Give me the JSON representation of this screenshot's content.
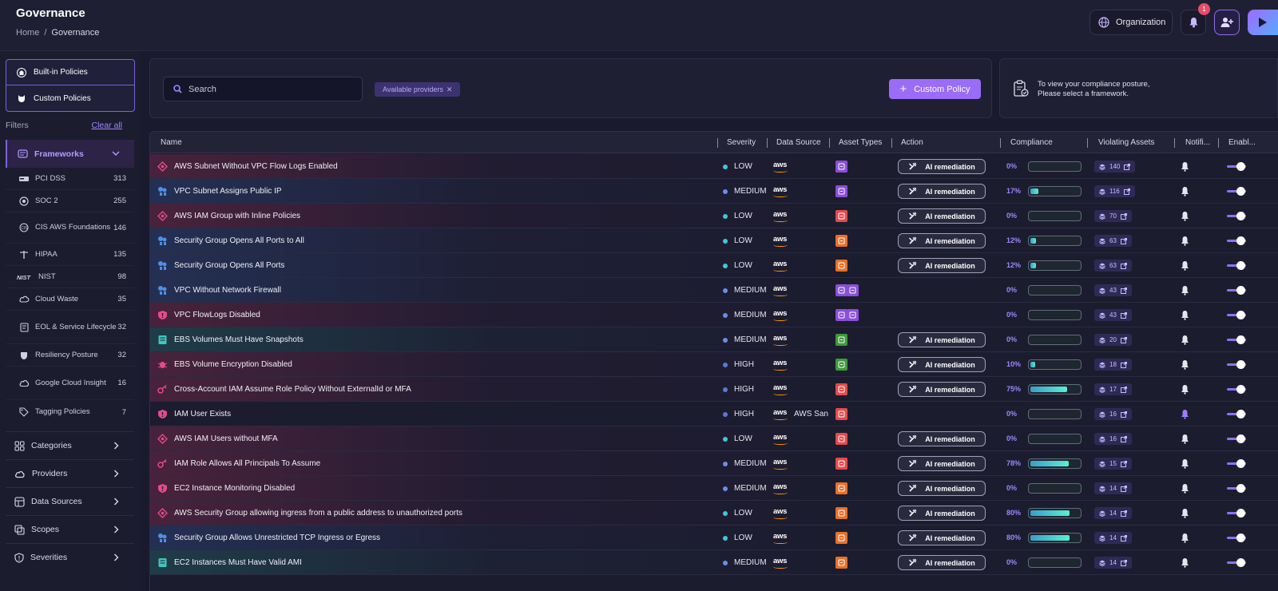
{
  "header": {
    "title": "Governance",
    "breadcrumb": {
      "home": "Home",
      "separator": "/",
      "current": "Governance"
    },
    "org_label": "Organization",
    "notification_count": "1"
  },
  "sidebar": {
    "policy_tabs": [
      {
        "label": "Built-in Policies",
        "icon": "building-icon"
      },
      {
        "label": "Custom Policies",
        "icon": "shield-cat-icon"
      }
    ],
    "filters_label": "Filters",
    "clear_all": "Clear all",
    "frameworks_label": "Frameworks",
    "frameworks": [
      {
        "name": "PCI DSS",
        "count": "313",
        "icon": "pci-logo-icon"
      },
      {
        "name": "SOC 2",
        "count": "255",
        "icon": "soc-logo-icon"
      },
      {
        "name": "CIS AWS Foundations",
        "count": "146",
        "icon": "cis-logo-icon"
      },
      {
        "name": "HIPAA",
        "count": "135",
        "icon": "hipaa-logo-icon"
      },
      {
        "name": "NIST",
        "count": "98",
        "icon": "nist-logo-icon"
      },
      {
        "name": "Cloud Waste",
        "count": "35",
        "icon": "cloud-waste-icon"
      },
      {
        "name": "EOL & Service Lifecycle",
        "count": "32",
        "icon": "eol-icon"
      },
      {
        "name": "Resiliency Posture",
        "count": "32",
        "icon": "resiliency-icon"
      },
      {
        "name": "Google Cloud Insight",
        "count": "16",
        "icon": "google-cloud-icon"
      },
      {
        "name": "Tagging Policies",
        "count": "7",
        "icon": "tag-icon"
      }
    ],
    "sections": [
      {
        "label": "Categories",
        "icon": "grid-icon"
      },
      {
        "label": "Providers",
        "icon": "cloud-icon"
      },
      {
        "label": "Data Sources",
        "icon": "database-icon"
      },
      {
        "label": "Scopes",
        "icon": "scope-icon"
      },
      {
        "label": "Severities",
        "icon": "shield-icon"
      }
    ]
  },
  "toolbar": {
    "search_placeholder": "Search",
    "chip_label": "Available providers",
    "chip_close": "✕",
    "custom_policy_label": "Custom Policy"
  },
  "compliance_card": {
    "line1": "To view your compliance posture,",
    "line2": "Please select a framework."
  },
  "table": {
    "columns": [
      "Name",
      "Severity",
      "Data Source",
      "Asset Types",
      "Action",
      "Compliance",
      "Violating Assets",
      "Notifi...",
      "Enabl..."
    ],
    "action_label": "AI remediation",
    "rows": [
      {
        "name": "AWS Subnet Without VPC Flow Logs Enabled",
        "severity": "LOW",
        "ds": "aws",
        "ds_extra": "",
        "assets": [
          "#8a4fd8"
        ],
        "action": true,
        "pct": "0%",
        "fill": 0,
        "viol": "140",
        "tone": "red",
        "icon": "alert-shield-icon",
        "icolor": "#e64a8a",
        "bell": "#e6e6ef"
      },
      {
        "name": "VPC Subnet Assigns Public IP",
        "severity": "MEDIUM",
        "ds": "aws",
        "ds_extra": "",
        "assets": [
          "#8a4fd8"
        ],
        "action": true,
        "pct": "17%",
        "fill": 17,
        "viol": "116",
        "tone": "blue",
        "icon": "network-icon",
        "icolor": "#4f8fe8",
        "bell": "#e6e6ef"
      },
      {
        "name": "AWS IAM Group with Inline Policies",
        "severity": "LOW",
        "ds": "aws",
        "ds_extra": "",
        "assets": [
          "#e24c4c"
        ],
        "action": true,
        "pct": "0%",
        "fill": 0,
        "viol": "70",
        "tone": "red",
        "icon": "alert-shield-icon",
        "icolor": "#e64a8a",
        "bell": "#e6e6ef"
      },
      {
        "name": "Security Group Opens All Ports to All",
        "severity": "LOW",
        "ds": "aws",
        "ds_extra": "",
        "assets": [
          "#e8702a"
        ],
        "action": true,
        "pct": "12%",
        "fill": 12,
        "viol": "63",
        "tone": "blue",
        "icon": "network-icon",
        "icolor": "#4f8fe8",
        "bell": "#e6e6ef"
      },
      {
        "name": "Security Group Opens All Ports",
        "severity": "LOW",
        "ds": "aws",
        "ds_extra": "",
        "assets": [
          "#e8702a"
        ],
        "action": true,
        "pct": "12%",
        "fill": 12,
        "viol": "63",
        "tone": "blue",
        "icon": "network-icon",
        "icolor": "#4f8fe8",
        "bell": "#e6e6ef"
      },
      {
        "name": "VPC Without Network Firewall",
        "severity": "MEDIUM",
        "ds": "aws",
        "ds_extra": "",
        "assets": [
          "#8a4fd8",
          "#8a4fd8"
        ],
        "action": false,
        "pct": "0%",
        "fill": 0,
        "viol": "43",
        "tone": "blue",
        "icon": "network-icon",
        "icolor": "#4f8fe8",
        "bell": "#e6e6ef"
      },
      {
        "name": "VPC FlowLogs Disabled",
        "severity": "MEDIUM",
        "ds": "aws",
        "ds_extra": "",
        "assets": [
          "#8a4fd8",
          "#8a4fd8"
        ],
        "action": false,
        "pct": "0%",
        "fill": 0,
        "viol": "43",
        "tone": "red",
        "icon": "shield-alert-icon",
        "icolor": "#e64a8a",
        "bell": "#e6e6ef"
      },
      {
        "name": "EBS Volumes Must Have Snapshots",
        "severity": "MEDIUM",
        "ds": "aws",
        "ds_extra": "",
        "assets": [
          "#3e9a3a"
        ],
        "action": true,
        "pct": "0%",
        "fill": 0,
        "viol": "20",
        "tone": "teal",
        "icon": "disk-icon",
        "icolor": "#3fc7c0",
        "bell": "#e6e6ef"
      },
      {
        "name": "EBS Volume Encryption Disabled",
        "severity": "HIGH",
        "ds": "aws",
        "ds_extra": "",
        "assets": [
          "#3e9a3a"
        ],
        "action": true,
        "pct": "10%",
        "fill": 10,
        "viol": "18",
        "tone": "red",
        "icon": "bug-icon",
        "icolor": "#e64a8a",
        "bell": "#e6e6ef"
      },
      {
        "name": "Cross-Account IAM Assume Role Policy Without ExternalId or MFA",
        "severity": "HIGH",
        "ds": "aws",
        "ds_extra": "",
        "assets": [
          "#e24c4c"
        ],
        "action": true,
        "pct": "75%",
        "fill": 75,
        "viol": "17",
        "tone": "red",
        "icon": "key-alert-icon",
        "icolor": "#e64a8a",
        "bell": "#e6e6ef"
      },
      {
        "name": "IAM User Exists",
        "severity": "HIGH",
        "ds": "aws",
        "ds_extra": "AWS San",
        "assets": [
          "#e24c4c"
        ],
        "action": false,
        "pct": "0%",
        "fill": 0,
        "viol": "16",
        "tone": "none",
        "icon": "shield-alert-icon",
        "icolor": "#e64a8a",
        "bell": "#9c7cff"
      },
      {
        "name": "AWS IAM Users without MFA",
        "severity": "LOW",
        "ds": "aws",
        "ds_extra": "",
        "assets": [
          "#e24c4c"
        ],
        "action": true,
        "pct": "0%",
        "fill": 0,
        "viol": "16",
        "tone": "red",
        "icon": "alert-shield-icon",
        "icolor": "#e64a8a",
        "bell": "#e6e6ef"
      },
      {
        "name": "IAM Role Allows All Principals To Assume",
        "severity": "MEDIUM",
        "ds": "aws",
        "ds_extra": "",
        "assets": [
          "#e24c4c"
        ],
        "action": true,
        "pct": "78%",
        "fill": 78,
        "viol": "15",
        "tone": "red",
        "icon": "key-alert-icon",
        "icolor": "#e64a8a",
        "bell": "#e6e6ef"
      },
      {
        "name": "EC2 Instance Monitoring Disabled",
        "severity": "MEDIUM",
        "ds": "aws",
        "ds_extra": "",
        "assets": [
          "#e8702a"
        ],
        "action": true,
        "pct": "0%",
        "fill": 0,
        "viol": "14",
        "tone": "red",
        "icon": "shield-alert-icon",
        "icolor": "#e64a8a",
        "bell": "#e6e6ef"
      },
      {
        "name": "AWS Security Group allowing ingress from a public address to unauthorized ports",
        "severity": "LOW",
        "ds": "aws",
        "ds_extra": "",
        "assets": [
          "#e8702a"
        ],
        "action": true,
        "pct": "80%",
        "fill": 80,
        "viol": "14",
        "tone": "red",
        "icon": "alert-shield-icon",
        "icolor": "#e64a8a",
        "bell": "#e6e6ef"
      },
      {
        "name": "Security Group Allows Unrestricted TCP Ingress or Egress",
        "severity": "LOW",
        "ds": "aws",
        "ds_extra": "",
        "assets": [
          "#e8702a"
        ],
        "action": true,
        "pct": "80%",
        "fill": 80,
        "viol": "14",
        "tone": "blue",
        "icon": "network-icon",
        "icolor": "#4f8fe8",
        "bell": "#e6e6ef"
      },
      {
        "name": "EC2 Instances Must Have Valid AMI",
        "severity": "MEDIUM",
        "ds": "aws",
        "ds_extra": "",
        "assets": [
          "#e8702a"
        ],
        "action": true,
        "pct": "0%",
        "fill": 0,
        "viol": "14",
        "tone": "teal",
        "icon": "disk-icon",
        "icolor": "#3fc7c0",
        "bell": "#e6e6ef"
      }
    ]
  },
  "colors": {
    "severity_low": "#3ec9d6",
    "severity_medium": "#6a8ee8",
    "severity_high": "#5a78d8",
    "accent": "#9a6cf8"
  }
}
